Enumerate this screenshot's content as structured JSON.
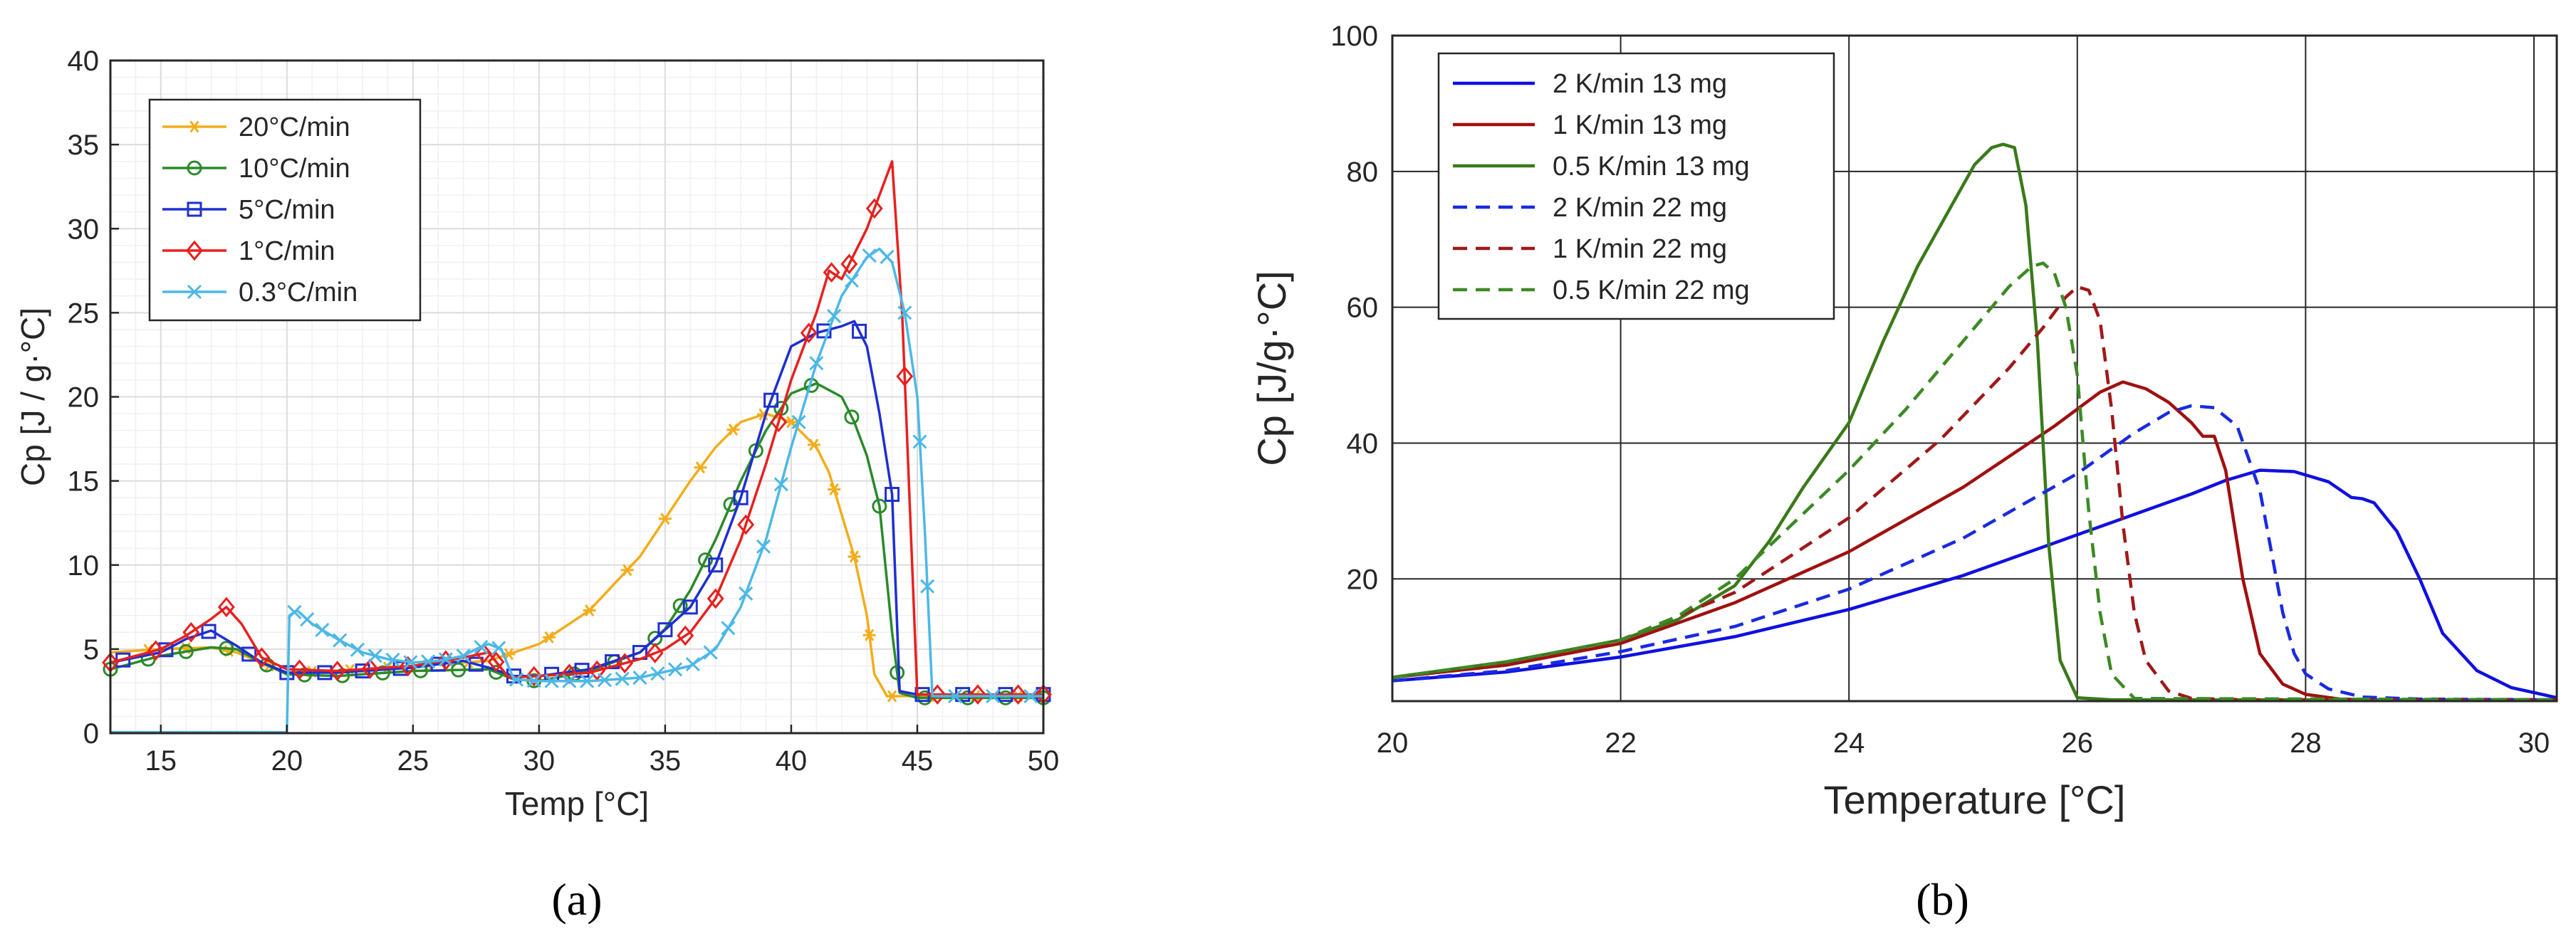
{
  "chart_data": [
    {
      "type": "line",
      "xlabel": "Temp [°C]",
      "ylabel": "Cp [J / g·°C]",
      "xlim": [
        13,
        50
      ],
      "ylim": [
        0,
        40
      ],
      "xticks": [
        "15",
        "20",
        "25",
        "30",
        "35",
        "40",
        "45",
        "50"
      ],
      "yticks": [
        "0",
        "5",
        "10",
        "15",
        "20",
        "25",
        "30",
        "35",
        "40"
      ],
      "grid": true,
      "legend_position": "top-left",
      "caption": "(a)",
      "series": [
        {
          "name": "20°C/min",
          "color": "#f2ad1b",
          "marker": "asterisk",
          "x": [
            13,
            15,
            17,
            18,
            20,
            22,
            25,
            28,
            30,
            32,
            34,
            36,
            37,
            38,
            39,
            40,
            41,
            41.5,
            42,
            42.5,
            43,
            43.3,
            43.8,
            44.5,
            50
          ],
          "y": [
            4.8,
            5.0,
            5.1,
            4.8,
            3.6,
            3.7,
            4.0,
            4.3,
            5.3,
            7.3,
            10.5,
            15.0,
            17.0,
            18.5,
            19.0,
            18.5,
            17.0,
            15.5,
            13.0,
            10.5,
            7.0,
            3.5,
            2.2,
            2.2,
            2.2
          ],
          "markers_x": [
            14.5,
            16,
            17.7,
            19.3,
            21,
            22.5,
            24,
            25.6,
            27.2,
            28.8,
            30.4,
            32,
            33.5,
            35,
            36.4,
            37.7,
            38.9,
            40,
            40.9,
            41.7,
            42.5,
            43.1,
            44,
            45.5,
            47.3,
            49
          ],
          "unused": 0
        },
        {
          "name": "10°C/min",
          "color": "#2a8a2a",
          "marker": "circle",
          "x": [
            13,
            15,
            17,
            18,
            19,
            20,
            22,
            25,
            28,
            29,
            30,
            32,
            34,
            35,
            36,
            37,
            38,
            39,
            40,
            41,
            42,
            42.5,
            43,
            43.5,
            44,
            44.3,
            45,
            50
          ],
          "y": [
            3.8,
            4.6,
            5.1,
            5.0,
            4.2,
            3.5,
            3.4,
            3.7,
            3.8,
            3.2,
            3.1,
            3.7,
            4.8,
            6.2,
            8.5,
            11.5,
            15.0,
            18.0,
            20.2,
            20.8,
            20.0,
            18.5,
            16.5,
            13.5,
            6.0,
            2.4,
            2.1,
            2.1
          ],
          "markers_x": [
            13,
            14.5,
            16,
            17.6,
            19.2,
            20.7,
            22.2,
            23.8,
            25.3,
            26.8,
            28.3,
            29.8,
            31.4,
            33,
            34.6,
            35.6,
            36.6,
            37.6,
            38.6,
            39.6,
            40.8,
            42.4,
            43.5,
            44.2,
            45.3,
            47,
            48.5,
            50
          ],
          "unused": 0
        },
        {
          "name": "5°C/min",
          "color": "#1f2fd0",
          "marker": "square",
          "x": [
            13,
            15,
            16,
            17,
            18,
            19,
            20,
            22,
            25,
            27,
            28,
            29,
            30,
            32,
            34,
            36,
            37,
            38,
            39,
            40,
            41,
            42,
            42.5,
            43,
            43.5,
            44,
            44.3,
            45,
            50
          ],
          "y": [
            4.2,
            4.8,
            5.6,
            6.1,
            5.2,
            4.2,
            3.6,
            3.6,
            3.9,
            4.3,
            3.9,
            3.4,
            3.4,
            3.8,
            4.8,
            7.5,
            10.0,
            14.0,
            19.0,
            23.0,
            23.8,
            24.2,
            24.5,
            23.0,
            19.0,
            14.2,
            2.5,
            2.3,
            2.3
          ],
          "markers_x": [
            13.5,
            15.2,
            16.9,
            18.5,
            20,
            21.5,
            23,
            24.5,
            26,
            27.5,
            29,
            30.5,
            31.7,
            32.9,
            34,
            35,
            36,
            37,
            38,
            39.2,
            41.3,
            42.7,
            44,
            45.2,
            46.8,
            48.5,
            50
          ],
          "unused": 0
        },
        {
          "name": "1°C/min",
          "color": "#e8201e",
          "marker": "diamond",
          "x": [
            13,
            15,
            16,
            17,
            17.6,
            18.2,
            19,
            20,
            22,
            25,
            27,
            28,
            28.8,
            30,
            32,
            34,
            35,
            36,
            37,
            38,
            39,
            40,
            41,
            41.5,
            42,
            42.5,
            43,
            43.5,
            44,
            44.4,
            45,
            50
          ],
          "y": [
            4.2,
            5.0,
            5.8,
            6.8,
            7.5,
            6.5,
            4.5,
            3.8,
            3.7,
            4.0,
            4.5,
            4.8,
            3.3,
            3.4,
            3.6,
            4.4,
            5.0,
            6.0,
            8.0,
            11.5,
            16.0,
            21.0,
            25.0,
            27.5,
            27.0,
            28.5,
            30.0,
            32.0,
            34.0,
            25.0,
            2.3,
            2.3
          ],
          "markers_x": [
            13,
            14.8,
            16.2,
            17.6,
            19,
            20.5,
            22,
            23.3,
            24.8,
            26.3,
            27.8,
            28.3,
            29.8,
            31.2,
            32.3,
            33.4,
            34.6,
            35.8,
            37,
            38.2,
            39.5,
            40.7,
            41.6,
            42.3,
            43.3,
            44.5,
            45.8,
            47.4,
            49,
            50
          ],
          "unused": 0
        },
        {
          "name": "0.3°C/min",
          "color": "#4cb8e6",
          "marker": "x",
          "x": [
            13,
            19.9,
            20.0,
            20.1,
            20.4,
            21,
            22,
            23,
            24,
            25,
            26,
            27,
            27.5,
            28,
            28.5,
            29,
            30,
            32,
            34,
            36,
            37,
            38,
            39,
            40,
            41,
            42,
            43,
            43.5,
            44,
            44.5,
            45,
            45.3,
            45.6,
            50
          ],
          "y": [
            0.05,
            0.05,
            0.05,
            7.0,
            7.3,
            6.5,
            5.6,
            4.8,
            4.4,
            4.2,
            4.3,
            4.6,
            5.0,
            5.3,
            5.0,
            3.2,
            3.1,
            3.1,
            3.3,
            4.0,
            5.0,
            7.5,
            11.5,
            17.0,
            22.0,
            26.0,
            28.3,
            28.8,
            28.0,
            25.0,
            20.0,
            12.0,
            2.2,
            2.2
          ],
          "markers_x": [
            20.3,
            20.8,
            21.4,
            22.1,
            22.8,
            23.5,
            24.2,
            24.9,
            25.6,
            26.3,
            27,
            27.7,
            28.4,
            29.1,
            29.8,
            30.5,
            31.2,
            31.9,
            32.6,
            33.3,
            34,
            34.7,
            35.4,
            36.1,
            36.8,
            37.5,
            38.2,
            38.9,
            39.6,
            40.3,
            41,
            41.7,
            42.4,
            43.1,
            43.8,
            44.5,
            45.1,
            45.4,
            46.5,
            48,
            49.5
          ],
          "unused": 0
        }
      ]
    },
    {
      "type": "line",
      "xlabel": "Temperature [°C]",
      "ylabel": "Cp [J/g·°C]",
      "xlim": [
        20,
        30.2
      ],
      "ylim": [
        2,
        100
      ],
      "xticks": [
        "20",
        "22",
        "24",
        "26",
        "28",
        "30"
      ],
      "yticks": [
        "20",
        "40",
        "60",
        "80",
        "100"
      ],
      "grid": true,
      "legend_position": "top-left",
      "caption": "(b)",
      "series": [
        {
          "name": "2 K/min 13 mg",
          "color": "#1010e0",
          "dash": "solid",
          "x": [
            20,
            21,
            22,
            23,
            24,
            25,
            26,
            26.5,
            27,
            27.3,
            27.6,
            27.9,
            28.2,
            28.4,
            28.5,
            28.6,
            28.8,
            29.0,
            29.2,
            29.5,
            29.8,
            30.2
          ],
          "y": [
            5.0,
            6.3,
            8.5,
            11.5,
            15.5,
            20.5,
            26.5,
            29.5,
            32.5,
            34.5,
            36.0,
            35.8,
            34.3,
            32.0,
            31.8,
            31.2,
            27.0,
            20.0,
            12.0,
            6.5,
            4.0,
            2.5
          ]
        },
        {
          "name": "1 K/min 13 mg",
          "color": "#a01010",
          "dash": "solid",
          "x": [
            20,
            21,
            22,
            23,
            24,
            25,
            25.8,
            26.2,
            26.4,
            26.6,
            26.8,
            27.0,
            27.1,
            27.2,
            27.3,
            27.45,
            27.6,
            27.8,
            28.0,
            28.3,
            28.6,
            30.2
          ],
          "y": [
            5.5,
            7.3,
            10.5,
            16.5,
            24.0,
            33.5,
            42.5,
            47.5,
            49.0,
            48.0,
            46.0,
            43.0,
            41.0,
            41.0,
            36.0,
            20.0,
            9.0,
            4.5,
            3.0,
            2.3,
            2.2,
            2.2
          ]
        },
        {
          "name": "0.5 K/min 13 mg",
          "color": "#3a7a1a",
          "dash": "solid",
          "x": [
            20,
            21,
            22,
            22.5,
            23,
            23.3,
            23.6,
            24.0,
            24.3,
            24.6,
            24.9,
            25.1,
            25.25,
            25.35,
            25.45,
            25.55,
            25.65,
            25.75,
            25.85,
            26.0,
            26.3,
            30.2
          ],
          "y": [
            5.5,
            7.8,
            11.0,
            14.0,
            19.0,
            25.5,
            33.5,
            43.0,
            55.0,
            66.0,
            75.0,
            81.0,
            83.5,
            84.0,
            83.5,
            75.0,
            55.0,
            25.0,
            8.0,
            2.5,
            2.2,
            2.2
          ]
        },
        {
          "name": "2 K/min 22 mg",
          "color": "#1a2ae0",
          "dash": "dashed",
          "x": [
            20,
            21,
            22,
            23,
            24,
            25,
            26,
            26.5,
            26.8,
            27.0,
            27.2,
            27.4,
            27.6,
            27.7,
            27.8,
            27.9,
            28.0,
            28.2,
            28.5,
            29.0,
            30.2
          ],
          "y": [
            5.0,
            6.5,
            9.3,
            13.0,
            18.5,
            26.0,
            35.5,
            41.5,
            44.5,
            45.5,
            45.2,
            42.5,
            33.0,
            24.0,
            15.0,
            9.0,
            6.0,
            3.8,
            2.6,
            2.3,
            2.2
          ]
        },
        {
          "name": "1 K/min 22 mg",
          "color": "#a01818",
          "dash": "dashed",
          "x": [
            20,
            21,
            22,
            23,
            24,
            24.8,
            25.4,
            25.7,
            25.9,
            26.0,
            26.1,
            26.2,
            26.3,
            26.4,
            26.5,
            26.6,
            26.8,
            27.0,
            27.5,
            30.2
          ],
          "y": [
            5.5,
            7.5,
            11.0,
            18.0,
            29.0,
            40.5,
            51.0,
            57.0,
            61.5,
            63.0,
            62.5,
            58.0,
            45.0,
            28.0,
            15.0,
            8.0,
            3.5,
            2.4,
            2.2,
            2.2
          ]
        },
        {
          "name": "0.5 K/min 22 mg",
          "color": "#3c8a24",
          "dash": "dashed",
          "x": [
            20,
            21,
            22,
            22.5,
            23,
            23.5,
            24,
            24.5,
            25.0,
            25.4,
            25.6,
            25.7,
            25.8,
            25.9,
            26.0,
            26.1,
            26.2,
            26.3,
            26.5,
            30.2
          ],
          "y": [
            5.5,
            7.8,
            11.0,
            14.5,
            20.0,
            28.0,
            36.0,
            45.0,
            55.0,
            63.0,
            66.0,
            66.5,
            65.0,
            60.0,
            50.0,
            30.0,
            15.0,
            6.0,
            2.4,
            2.2
          ]
        }
      ]
    }
  ]
}
